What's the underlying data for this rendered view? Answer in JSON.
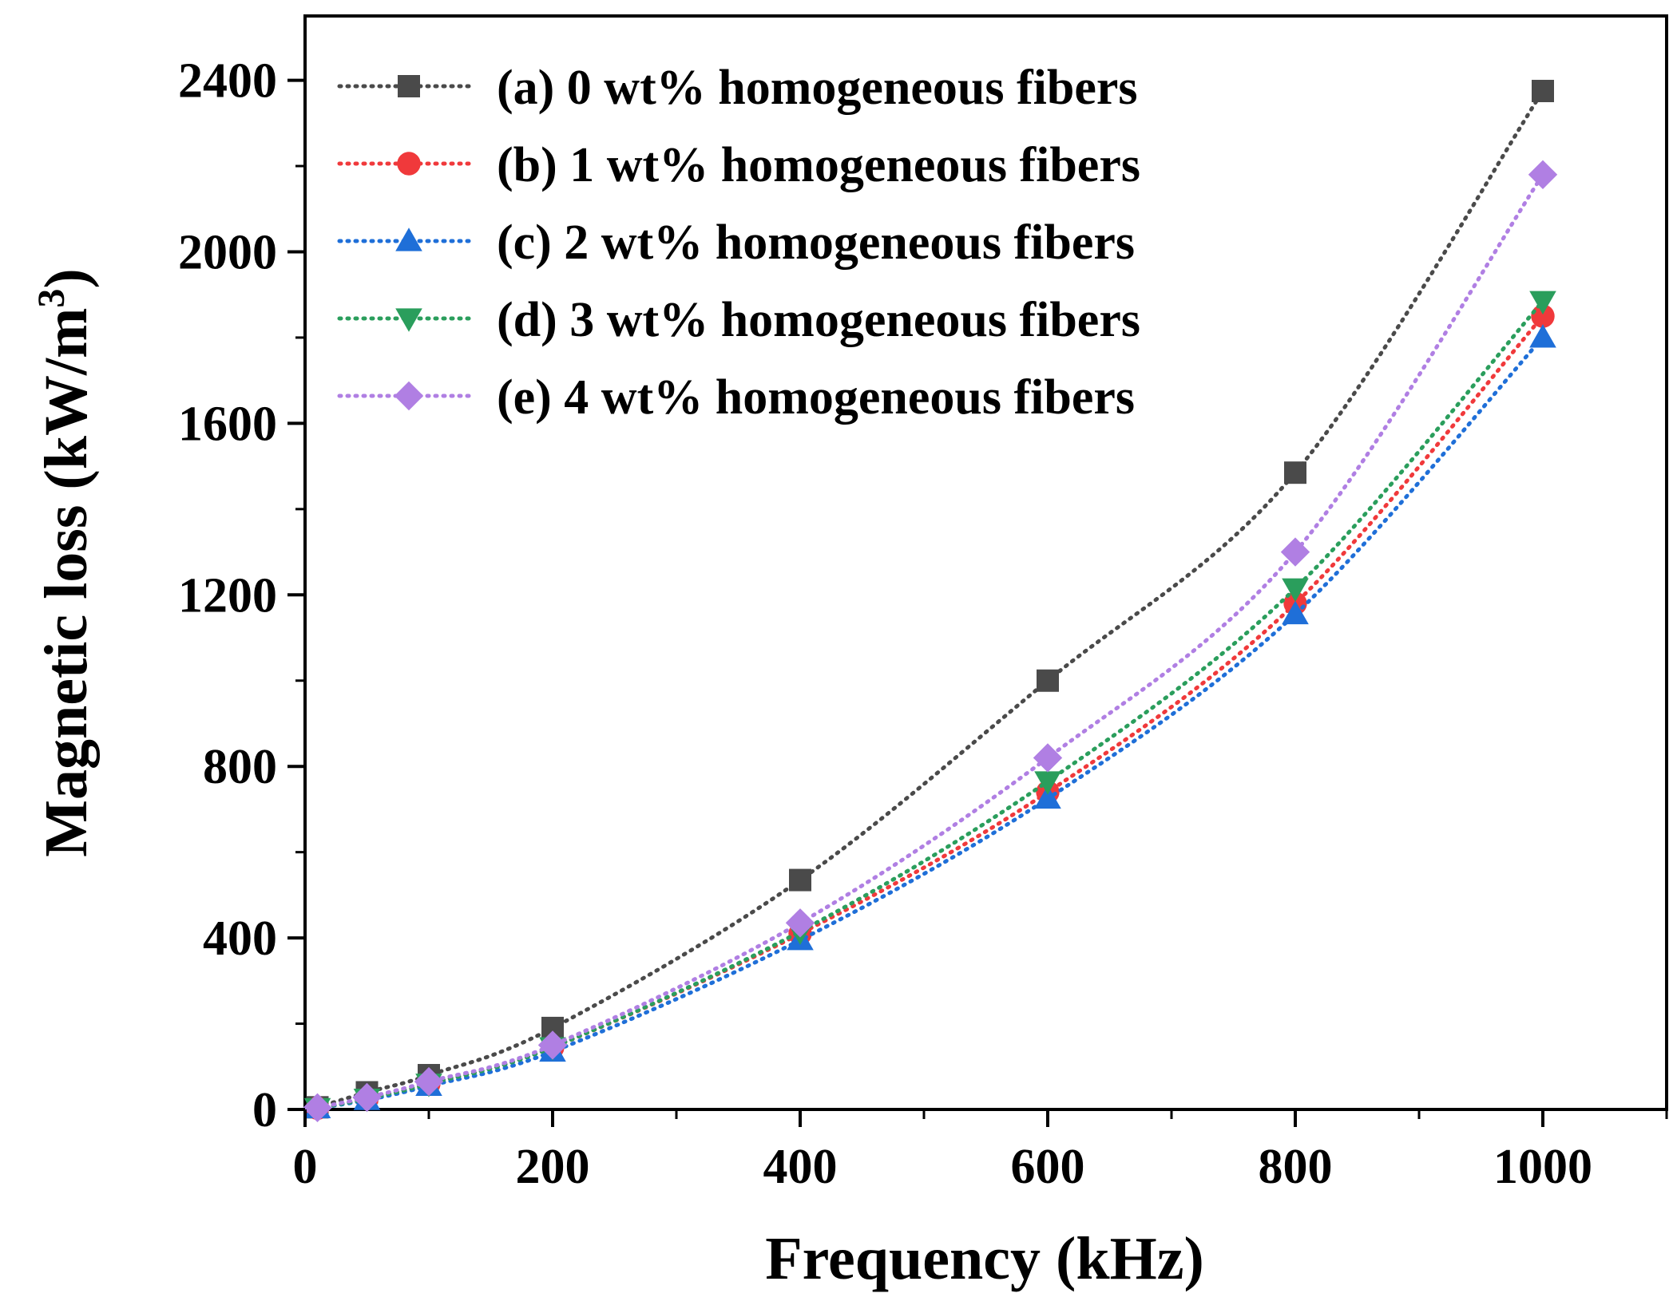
{
  "chart_data": {
    "type": "line",
    "title": "",
    "xlabel": "Frequency (kHz)",
    "ylabel_main": "Magnetic loss (kW/m",
    "ylabel_sup": "3",
    "ylabel_close": ")",
    "xlim": [
      0,
      1100
    ],
    "ylim": [
      0,
      2550
    ],
    "x_ticks": [
      0,
      200,
      400,
      600,
      800,
      1000
    ],
    "x_tick_labels": [
      "0",
      "200",
      "400",
      "600",
      "800",
      "1000"
    ],
    "x_minor_ticks": [
      100,
      300,
      500,
      700,
      900,
      1100
    ],
    "y_ticks": [
      0,
      400,
      800,
      1200,
      1600,
      2000,
      2400
    ],
    "y_tick_labels": [
      "0",
      "400",
      "800",
      "1200",
      "1600",
      "2000",
      "2400"
    ],
    "y_minor_ticks": [
      200,
      600,
      1000,
      1400,
      1800,
      2200
    ],
    "grid": false,
    "legend_position": "top-left",
    "x": [
      10,
      50,
      100,
      200,
      400,
      600,
      800,
      1000
    ],
    "series": [
      {
        "name": "(a) 0 wt% homogeneous fibers",
        "color": "#4a4a4a",
        "marker": "square",
        "values": [
          5,
          40,
          80,
          190,
          535,
          1000,
          1485,
          2375
        ]
      },
      {
        "name": "(b) 1 wt% homogeneous fibers",
        "color": "#f0393b",
        "marker": "circle",
        "values": [
          3,
          25,
          60,
          145,
          410,
          740,
          1180,
          1850
        ]
      },
      {
        "name": "(c) 2 wt% homogeneous fibers",
        "color": "#1f6fd8",
        "marker": "triangle-up",
        "values": [
          3,
          22,
          55,
          135,
          395,
          725,
          1155,
          1800
        ]
      },
      {
        "name": "(d) 3 wt% homogeneous fibers",
        "color": "#2a9e5c",
        "marker": "triangle-down",
        "values": [
          3,
          25,
          60,
          145,
          415,
          765,
          1215,
          1885
        ]
      },
      {
        "name": "(e) 4 wt% homogeneous fibers",
        "color": "#b07fe3",
        "marker": "diamond",
        "values": [
          4,
          28,
          65,
          150,
          435,
          820,
          1300,
          2180
        ]
      }
    ]
  }
}
